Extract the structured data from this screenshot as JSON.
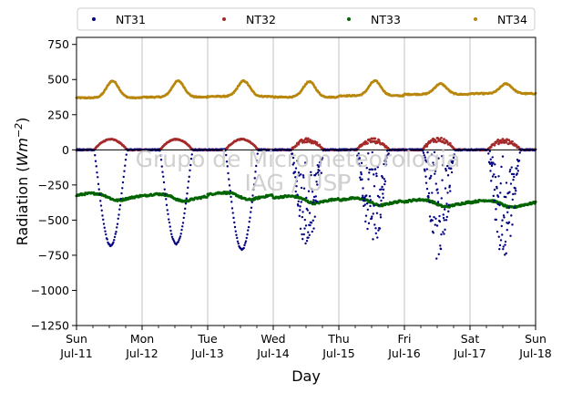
{
  "chart_data": {
    "type": "scatter",
    "xlabel": "Day",
    "ylabel": "Radiation",
    "ylabel_unit_base": "Wm",
    "ylabel_unit_exp": "−2",
    "ylim": [
      -1250,
      800
    ],
    "xlim_days": [
      0,
      7
    ],
    "y_ticks": [
      -1250,
      -1000,
      -750,
      -500,
      -250,
      0,
      250,
      500,
      750
    ],
    "y_tick_labels": [
      "−1250",
      "−1000",
      "−750",
      "−500",
      "−250",
      "0",
      "250",
      "500",
      "750"
    ],
    "x_ticks": [
      {
        "day": 0,
        "l1": "Sun",
        "l2": "Jul-11"
      },
      {
        "day": 1,
        "l1": "Mon",
        "l2": "Jul-12"
      },
      {
        "day": 2,
        "l1": "Tue",
        "l2": "Jul-13"
      },
      {
        "day": 3,
        "l1": "Wed",
        "l2": "Jul-14"
      },
      {
        "day": 4,
        "l1": "Thu",
        "l2": "Jul-15"
      },
      {
        "day": 5,
        "l1": "Fri",
        "l2": "Jul-16"
      },
      {
        "day": 6,
        "l1": "Sat",
        "l2": "Jul-17"
      },
      {
        "day": 7,
        "l1": "Sun",
        "l2": "Jul-18"
      }
    ],
    "minor_ticks_per_day": 4,
    "grid": "vertical",
    "legend_position": "top",
    "series": [
      {
        "name": "NT31",
        "color": "#000080",
        "mode": "shortwave_negative"
      },
      {
        "name": "NT32",
        "color": "#a52a2a",
        "mode": "shortwave_positive"
      },
      {
        "name": "NT33",
        "color": "#006400",
        "mode": "longwave_up"
      },
      {
        "name": "NT34",
        "color": "#b8860b",
        "mode": "longwave_down"
      }
    ],
    "daily_peaks": {
      "NT31_min": [
        -680,
        -670,
        -710,
        -700,
        -690,
        -750,
        -760
      ],
      "NT32_max": [
        75,
        75,
        75,
        75,
        75,
        85,
        75
      ],
      "NT34_max": [
        490,
        490,
        490,
        485,
        490,
        470,
        470
      ],
      "NT34_night": [
        370,
        375,
        380,
        375,
        385,
        395,
        400
      ],
      "NT33_base": [
        -325,
        -330,
        -320,
        -345,
        -360,
        -370,
        -375
      ]
    },
    "annotations": [
      "Grupo de Micrometeorologia",
      "IAG / USP"
    ]
  }
}
